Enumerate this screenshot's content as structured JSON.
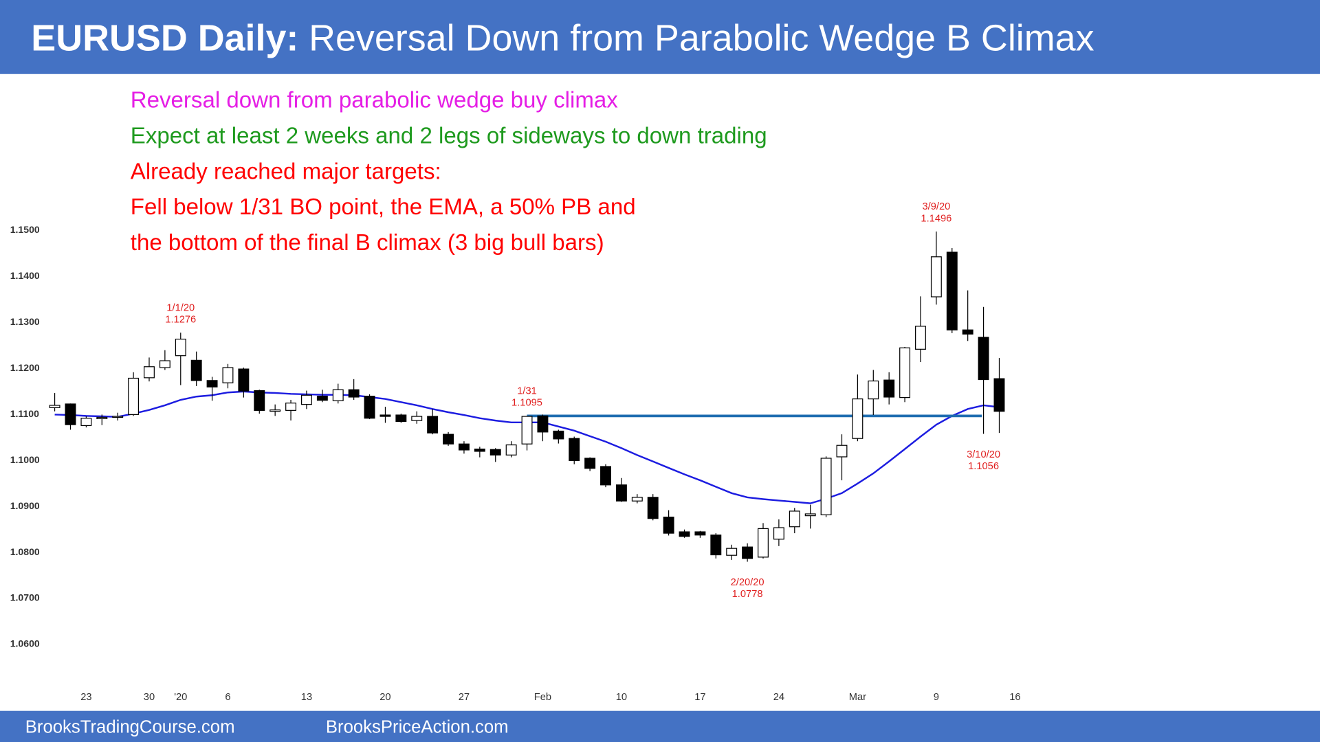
{
  "chart_data": {
    "type": "candlestick",
    "title": "EURUSD Daily:",
    "subtitle": "Reversal Down from Parabolic Wedge B Climax",
    "notes": [
      {
        "text": "Reversal down from parabolic wedge buy climax",
        "color": "#e51ee5"
      },
      {
        "text": "Expect at least 2 weeks and 2 legs of sideways to down trading",
        "color": "#1e9a1e"
      },
      {
        "text": "Already reached major targets:",
        "color": "#ff0000"
      },
      {
        "text": "Fell below 1/31 BO point, the EMA, a 50% PB and",
        "color": "#ff0000"
      },
      {
        "text": "the bottom of the final B climax (3 big bull bars)",
        "color": "#ff0000"
      }
    ],
    "categories": [
      null,
      null,
      "23",
      null,
      null,
      null,
      "30",
      null,
      "'20",
      null,
      null,
      "6",
      null,
      null,
      null,
      null,
      "13",
      null,
      null,
      null,
      null,
      "20",
      null,
      null,
      null,
      null,
      "27",
      null,
      null,
      null,
      null,
      "Feb",
      null,
      null,
      null,
      null,
      "10",
      null,
      null,
      null,
      null,
      "17",
      null,
      null,
      null,
      null,
      "24",
      null,
      null,
      null,
      null,
      "Mar",
      null,
      null,
      null,
      null,
      "9",
      null,
      null,
      null,
      null,
      "16"
    ],
    "ohlc": {
      "up_color": "#ffffff",
      "down_color": "#000000",
      "open": [
        1.1113,
        1.1121,
        1.1074,
        1.1089,
        1.1092,
        1.1098,
        1.1178,
        1.12,
        1.1226,
        1.1216,
        1.1172,
        1.1167,
        1.1197,
        1.115,
        1.1105,
        1.1107,
        1.112,
        1.1138,
        1.1128,
        1.1152,
        1.1138,
        1.1097,
        1.1097,
        1.1085,
        1.1094,
        1.1055,
        1.1034,
        1.1023,
        1.1022,
        1.101,
        1.1034,
        1.1095,
        1.1062,
        1.1046,
        1.1003,
        1.0985,
        1.0945,
        1.091,
        1.0918,
        1.0875,
        1.0843,
        1.0843,
        1.0836,
        1.0792,
        1.081,
        1.0788,
        1.0827,
        1.0854,
        1.0878,
        1.088,
        1.1006,
        1.1046,
        1.1132,
        1.1173,
        1.1135,
        1.124,
        1.1354,
        1.1451,
        1.1282,
        1.1266,
        1.1176,
        null
      ],
      "high": [
        1.1145,
        1.1122,
        1.1094,
        1.1098,
        1.1102,
        1.119,
        1.1222,
        1.1238,
        1.1276,
        1.1235,
        1.118,
        1.1208,
        1.12,
        1.1152,
        1.112,
        1.113,
        1.115,
        1.1152,
        1.1165,
        1.1175,
        1.1142,
        1.1115,
        1.11,
        1.1105,
        1.111,
        1.106,
        1.104,
        1.1028,
        1.1025,
        1.104,
        1.1095,
        1.1098,
        1.1065,
        1.105,
        1.1005,
        1.099,
        1.096,
        1.0925,
        1.0925,
        1.089,
        1.0848,
        1.0845,
        1.084,
        1.0815,
        1.0818,
        1.0862,
        1.087,
        1.0895,
        1.0902,
        1.1007,
        1.1055,
        1.1185,
        1.1195,
        1.119,
        1.1245,
        1.1355,
        1.1496,
        1.146,
        1.1368,
        1.1332,
        1.1221,
        null
      ],
      "low": [
        1.1105,
        1.1065,
        1.107,
        1.1075,
        1.1085,
        1.1095,
        1.117,
        1.1195,
        1.1162,
        1.116,
        1.1128,
        1.1155,
        1.1135,
        1.11,
        1.1095,
        1.1085,
        1.111,
        1.1125,
        1.1122,
        1.113,
        1.1088,
        1.108,
        1.108,
        1.1078,
        1.1055,
        1.103,
        1.1013,
        1.1005,
        1.0995,
        1.1005,
        1.102,
        1.104,
        1.1035,
        1.099,
        1.0975,
        1.094,
        1.0908,
        1.0905,
        1.0868,
        1.0835,
        1.083,
        1.083,
        1.0785,
        1.0782,
        1.0778,
        1.0785,
        1.0812,
        1.084,
        1.085,
        1.0875,
        1.0955,
        1.104,
        1.1097,
        1.112,
        1.1125,
        1.1212,
        1.1337,
        1.1275,
        1.1258,
        1.1056,
        1.1058,
        null
      ],
      "close": [
        1.1118,
        1.1076,
        1.109,
        1.1092,
        1.1094,
        1.1177,
        1.1202,
        1.1215,
        1.1262,
        1.1172,
        1.1158,
        1.12,
        1.1149,
        1.1107,
        1.1108,
        1.1123,
        1.114,
        1.1129,
        1.1152,
        1.1136,
        1.109,
        1.1094,
        1.1083,
        1.1094,
        1.1058,
        1.1034,
        1.1021,
        1.1018,
        1.101,
        1.1032,
        1.1094,
        1.106,
        1.1045,
        1.0998,
        1.0981,
        1.0945,
        1.091,
        1.0918,
        1.0872,
        1.084,
        1.0833,
        1.0836,
        1.0793,
        1.0807,
        1.0785,
        1.085,
        1.0852,
        1.0888,
        1.0882,
        1.1003,
        1.1031,
        1.1132,
        1.1171,
        1.1136,
        1.1243,
        1.129,
        1.1441,
        1.1282,
        1.1273,
        1.1174,
        1.1105,
        null
      ]
    },
    "ema": {
      "color": "#1c1ce0",
      "values": [
        1.1098,
        1.1097,
        1.1095,
        1.1094,
        1.1093,
        1.11,
        1.1108,
        1.1118,
        1.113,
        1.1137,
        1.114,
        1.1146,
        1.1148,
        1.1146,
        1.1145,
        1.1143,
        1.1142,
        1.1141,
        1.1141,
        1.114,
        1.1136,
        1.1132,
        1.1125,
        1.1118,
        1.111,
        1.1103,
        1.1097,
        1.109,
        1.1085,
        1.1081,
        1.1081,
        1.1081,
        1.1072,
        1.1063,
        1.1051,
        1.1039,
        1.1025,
        1.101,
        1.0996,
        1.0982,
        1.0968,
        1.0955,
        1.0941,
        1.0927,
        1.0918,
        1.0914,
        1.0911,
        1.0908,
        1.0905,
        1.0915,
        1.0927,
        1.0948,
        1.097,
        1.0996,
        1.1023,
        1.105,
        1.1076,
        1.1095,
        1.111,
        1.1118,
        1.1114,
        null
      ]
    },
    "level_line": {
      "value": 1.1095,
      "color": "#1f6db0"
    },
    "annotations": [
      {
        "date": "1/1/20",
        "value": 1.1276
      },
      {
        "date": "1/31",
        "value": 1.1095
      },
      {
        "date": "2/20/20",
        "value": 1.0778
      },
      {
        "date": "3/9/20",
        "value": 1.1496
      },
      {
        "date": "3/10/20",
        "value": 1.1056
      }
    ],
    "annotation_color": "#e02020",
    "ylim": [
      1.053,
      1.158
    ],
    "yticks": [
      {
        "value": 1.06,
        "label": "1.0600"
      },
      {
        "value": 1.07,
        "label": "1.0700"
      },
      {
        "value": 1.08,
        "label": "1.0800"
      },
      {
        "value": 1.09,
        "label": "1.0900"
      },
      {
        "value": 1.1,
        "label": "1.1000"
      },
      {
        "value": 1.11,
        "label": "1.1100"
      },
      {
        "value": 1.12,
        "label": "1.1200"
      },
      {
        "value": 1.13,
        "label": "1.1300"
      },
      {
        "value": 1.14,
        "label": "1.1400"
      },
      {
        "value": 1.15,
        "label": "1.1500"
      }
    ],
    "grid": false
  },
  "footer": {
    "left": "BrooksTradingCourse.com",
    "right": "BrooksPriceAction.com"
  }
}
